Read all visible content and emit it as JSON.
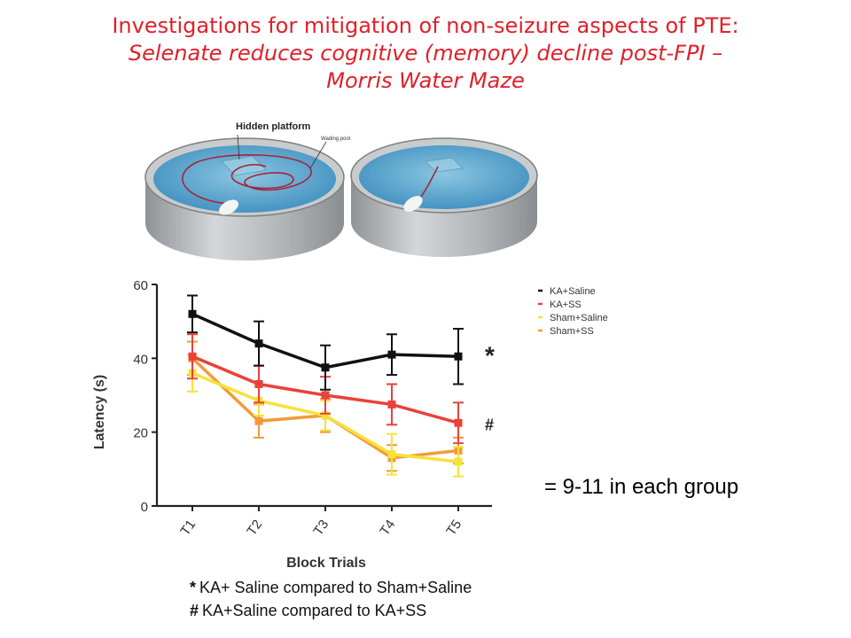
{
  "slide": {
    "title_line1": "Investigations for mitigation of non-seizure aspects of PTE:",
    "title_line2": "Selenate reduces cognitive (memory) decline post-FPI –",
    "title_line3": "Morris Water Maze",
    "note": "= 9-11 in each group",
    "footnotes": [
      {
        "symbol": "*",
        "text": "KA+ Saline compared to Sham+Saline"
      },
      {
        "symbol": "#",
        "text": "KA+Saline compared to KA+SS"
      }
    ]
  },
  "illustration": {
    "label_hidden_platform": "Hidden platform",
    "label_wading_pool": "Wading pool",
    "colors": {
      "water": "#5ea8cf",
      "rim": "#b9bcbe",
      "path": "#a6243a"
    }
  },
  "chart_data": {
    "type": "line",
    "xlabel": "Block Trials",
    "ylabel": "Latency (s)",
    "categories": [
      "T1",
      "T2",
      "T3",
      "T4",
      "T5"
    ],
    "yticks": [
      0,
      20,
      40,
      60
    ],
    "ylim": [
      0,
      60
    ],
    "legend_position": "right",
    "series": [
      {
        "name": "KA+Saline",
        "color": "#111111",
        "values": [
          52,
          44,
          37.5,
          41,
          40.5
        ],
        "errors": [
          5,
          6,
          6,
          5.5,
          7.5
        ]
      },
      {
        "name": "KA+SS",
        "color": "#e8423a",
        "values": [
          40.5,
          33,
          30,
          27.5,
          22.5
        ],
        "errors": [
          6,
          5,
          5,
          5.5,
          5.5
        ]
      },
      {
        "name": "Sham+Saline",
        "color": "#f5e23c",
        "values": [
          36,
          28.5,
          24.5,
          14,
          12
        ],
        "errors": [
          5,
          4,
          4,
          5.5,
          4
        ]
      },
      {
        "name": "Sham+SS",
        "color": "#f29a3a",
        "values": [
          40,
          23,
          24.5,
          13,
          15
        ],
        "errors": [
          4.5,
          4.5,
          4.5,
          3.5,
          3.5
        ]
      }
    ],
    "annotations": [
      {
        "text": "*",
        "series": "KA+Saline",
        "at": "T5"
      },
      {
        "text": "#",
        "series": "KA+SS",
        "at": "T5"
      }
    ]
  }
}
